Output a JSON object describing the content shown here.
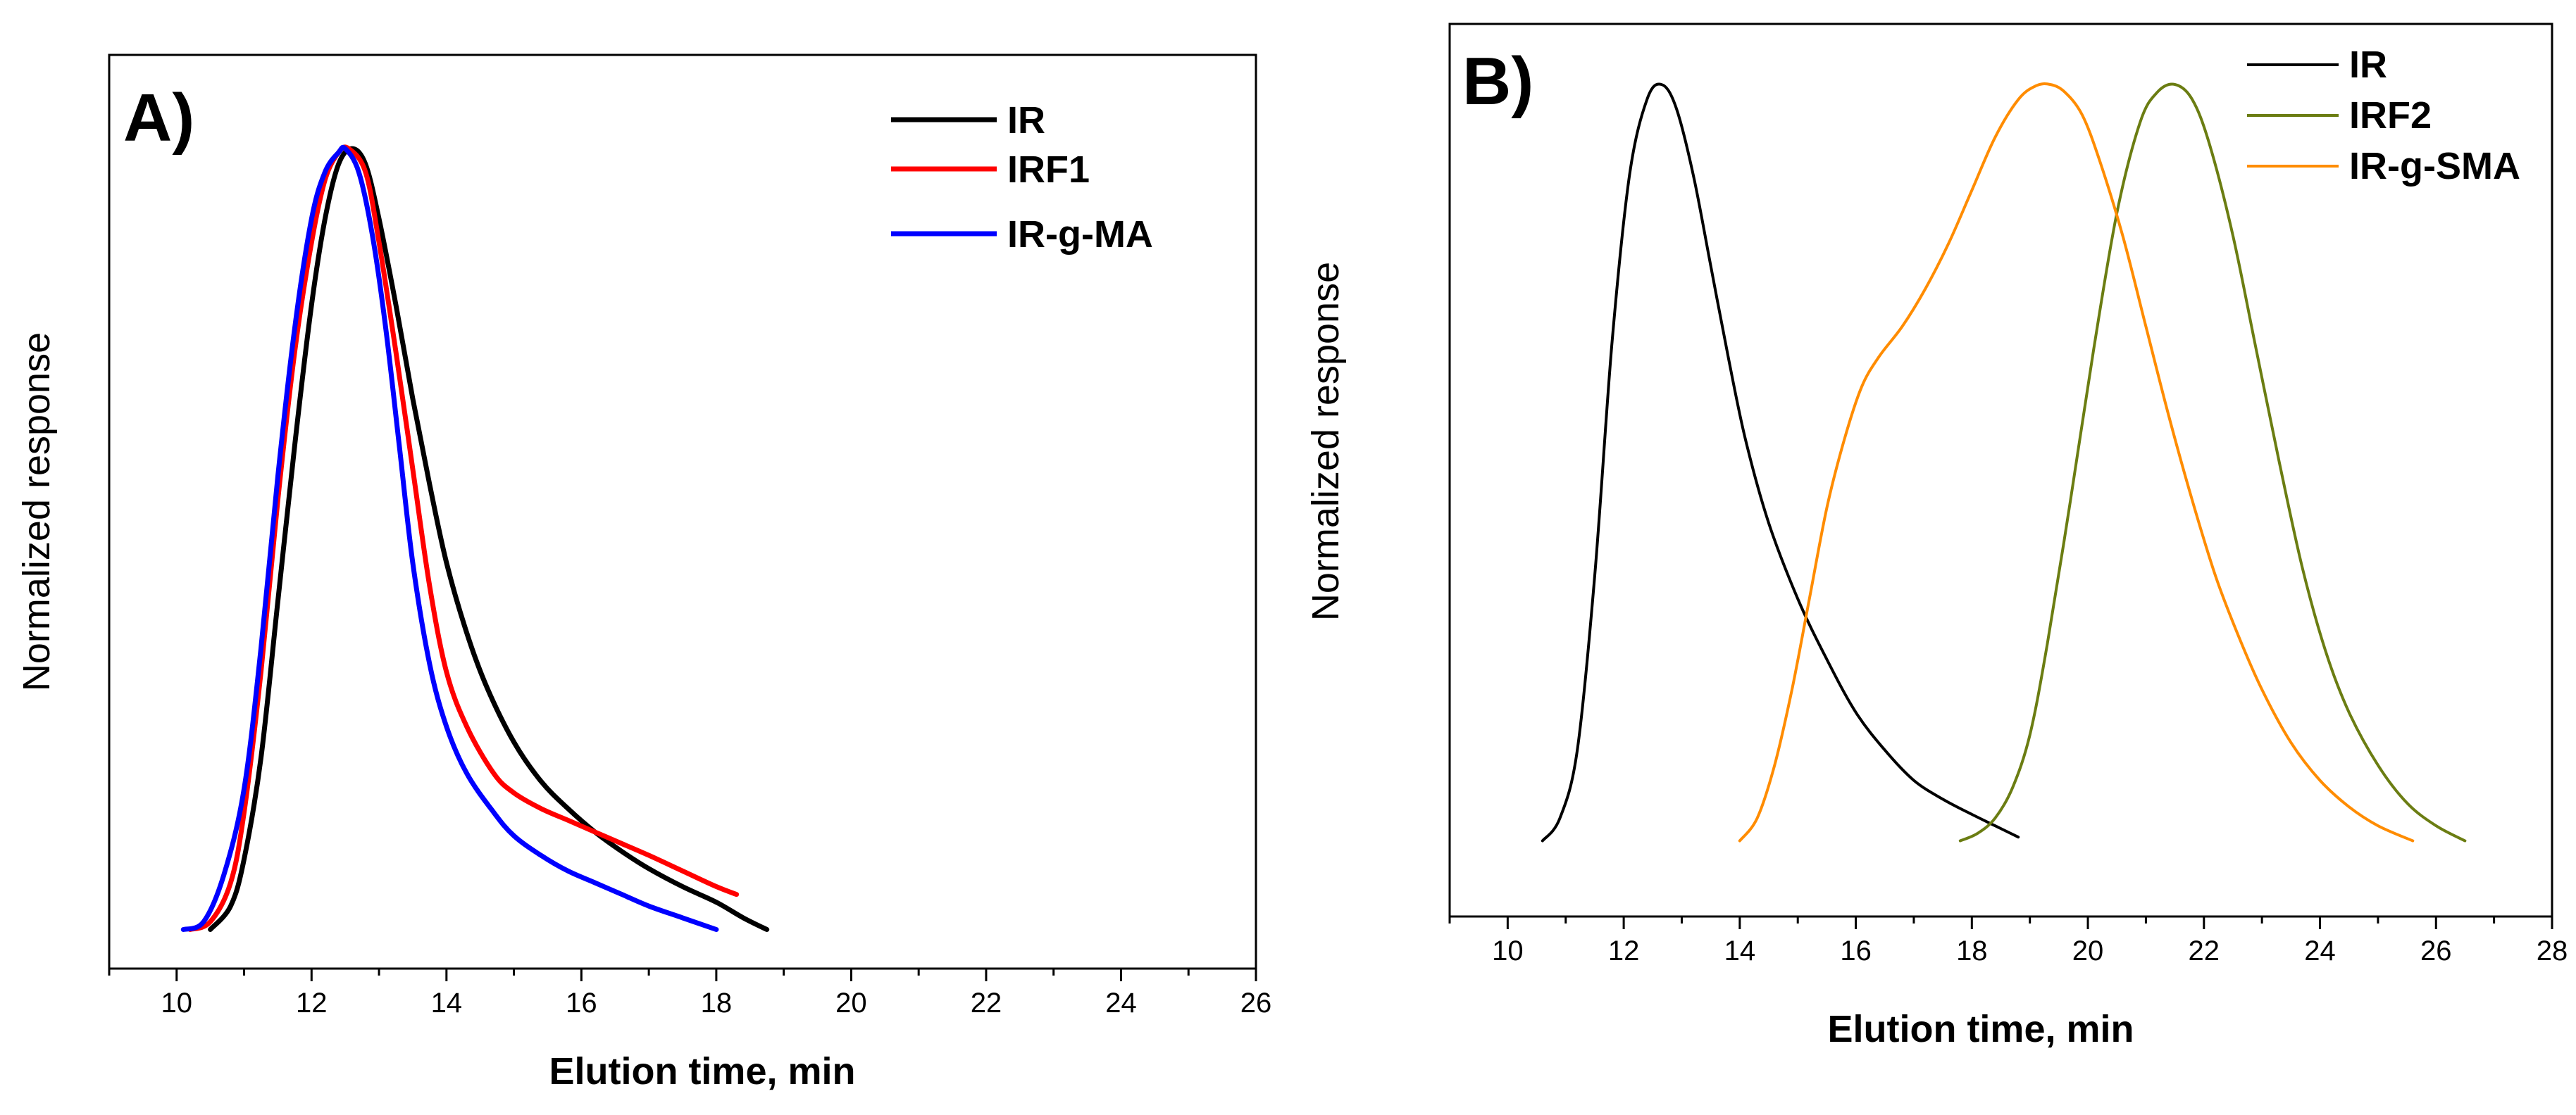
{
  "chart_data": [
    {
      "type": "line",
      "panel_label": "A)",
      "xlabel": "Elution time, min",
      "ylabel": "Normalized response",
      "xlim": [
        9,
        26
      ],
      "ylim": [
        -0.05,
        1.12
      ],
      "xticks": [
        "10",
        "12",
        "14",
        "16",
        "18",
        "20",
        "22",
        "24",
        "26"
      ],
      "legend_position": "top-right",
      "series": [
        {
          "name": "IR",
          "color": "#000000",
          "x": [
            10.5,
            10.8,
            11.0,
            11.25,
            11.5,
            11.75,
            12.0,
            12.2,
            12.4,
            12.6,
            12.8,
            13.0,
            13.25,
            13.5,
            13.75,
            14.0,
            14.3,
            14.6,
            15.0,
            15.4,
            15.8,
            16.2,
            16.6,
            17.0,
            17.5,
            18.0,
            18.4,
            18.75
          ],
          "y": [
            0.0,
            0.03,
            0.09,
            0.22,
            0.42,
            0.62,
            0.8,
            0.91,
            0.98,
            1.0,
            0.98,
            0.91,
            0.8,
            0.68,
            0.57,
            0.47,
            0.38,
            0.31,
            0.24,
            0.19,
            0.155,
            0.125,
            0.1,
            0.078,
            0.055,
            0.035,
            0.015,
            0.0
          ]
        },
        {
          "name": "IRF1",
          "color": "#ff0000",
          "x": [
            10.2,
            10.5,
            10.8,
            11.0,
            11.25,
            11.5,
            11.75,
            12.0,
            12.2,
            12.4,
            12.55,
            12.8,
            13.0,
            13.25,
            13.5,
            13.75,
            14.0,
            14.3,
            14.7,
            15.0,
            15.4,
            15.8,
            16.2,
            16.6,
            17.0,
            17.5,
            18.0,
            18.3
          ],
          "y": [
            0.0,
            0.01,
            0.06,
            0.15,
            0.33,
            0.55,
            0.74,
            0.88,
            0.96,
            0.995,
            1.0,
            0.97,
            0.88,
            0.74,
            0.59,
            0.44,
            0.33,
            0.26,
            0.2,
            0.175,
            0.155,
            0.14,
            0.125,
            0.11,
            0.095,
            0.075,
            0.055,
            0.045
          ]
        },
        {
          "name": "IR-g-MA",
          "color": "#0000ff",
          "x": [
            10.1,
            10.4,
            10.7,
            11.0,
            11.25,
            11.5,
            11.75,
            12.0,
            12.2,
            12.4,
            12.5,
            12.7,
            12.9,
            13.1,
            13.3,
            13.5,
            13.75,
            14.0,
            14.3,
            14.7,
            15.0,
            15.4,
            15.8,
            16.2,
            16.6,
            17.0,
            17.5,
            18.0
          ],
          "y": [
            0.0,
            0.01,
            0.07,
            0.18,
            0.36,
            0.58,
            0.77,
            0.91,
            0.97,
            0.995,
            1.0,
            0.97,
            0.89,
            0.77,
            0.62,
            0.47,
            0.34,
            0.26,
            0.2,
            0.15,
            0.12,
            0.095,
            0.075,
            0.06,
            0.045,
            0.03,
            0.015,
            0.0
          ]
        }
      ]
    },
    {
      "type": "line",
      "panel_label": "B)",
      "xlabel": "Elution time, min",
      "ylabel": "Normalized response",
      "xlim": [
        9,
        28
      ],
      "ylim": [
        -0.1,
        1.08
      ],
      "xticks": [
        "10",
        "12",
        "14",
        "16",
        "18",
        "20",
        "22",
        "24",
        "26",
        "28"
      ],
      "legend_position": "top-right",
      "series": [
        {
          "name": "IR",
          "color": "#000000",
          "x": [
            10.6,
            10.9,
            11.2,
            11.5,
            11.8,
            12.1,
            12.4,
            12.65,
            12.9,
            13.2,
            13.5,
            13.8,
            14.1,
            14.5,
            15.0,
            15.5,
            16.0,
            16.5,
            17.0,
            17.5,
            18.0,
            18.4,
            18.8
          ],
          "y": [
            0.0,
            0.03,
            0.12,
            0.35,
            0.66,
            0.88,
            0.98,
            1.0,
            0.97,
            0.88,
            0.76,
            0.64,
            0.53,
            0.42,
            0.32,
            0.24,
            0.17,
            0.12,
            0.08,
            0.055,
            0.035,
            0.02,
            0.005
          ]
        },
        {
          "name": "IRF2",
          "color": "#6b7d12",
          "x": [
            17.8,
            18.1,
            18.4,
            18.7,
            19.0,
            19.3,
            19.7,
            20.1,
            20.5,
            20.9,
            21.2,
            21.5,
            21.8,
            22.1,
            22.5,
            22.9,
            23.3,
            23.7,
            24.1,
            24.5,
            25.0,
            25.5,
            26.0,
            26.5
          ],
          "y": [
            0.0,
            0.01,
            0.03,
            0.07,
            0.14,
            0.26,
            0.45,
            0.65,
            0.83,
            0.95,
            0.99,
            1.0,
            0.98,
            0.92,
            0.8,
            0.65,
            0.5,
            0.36,
            0.25,
            0.17,
            0.1,
            0.05,
            0.02,
            0.0
          ]
        },
        {
          "name": "IR-g-SMA",
          "color": "#ff8c00",
          "x": [
            14.0,
            14.3,
            14.6,
            14.9,
            15.2,
            15.5,
            15.8,
            16.1,
            16.4,
            16.8,
            17.2,
            17.6,
            18.0,
            18.4,
            18.8,
            19.1,
            19.35,
            19.6,
            19.9,
            20.2,
            20.6,
            21.0,
            21.4,
            21.8,
            22.2,
            22.6,
            23.0,
            23.5,
            24.0,
            24.5,
            25.0,
            25.6
          ],
          "y": [
            0.0,
            0.03,
            0.1,
            0.2,
            0.32,
            0.44,
            0.53,
            0.6,
            0.64,
            0.68,
            0.73,
            0.79,
            0.86,
            0.93,
            0.98,
            0.998,
            1.0,
            0.99,
            0.96,
            0.9,
            0.8,
            0.68,
            0.56,
            0.45,
            0.35,
            0.27,
            0.2,
            0.13,
            0.08,
            0.045,
            0.02,
            0.0
          ]
        }
      ]
    }
  ]
}
